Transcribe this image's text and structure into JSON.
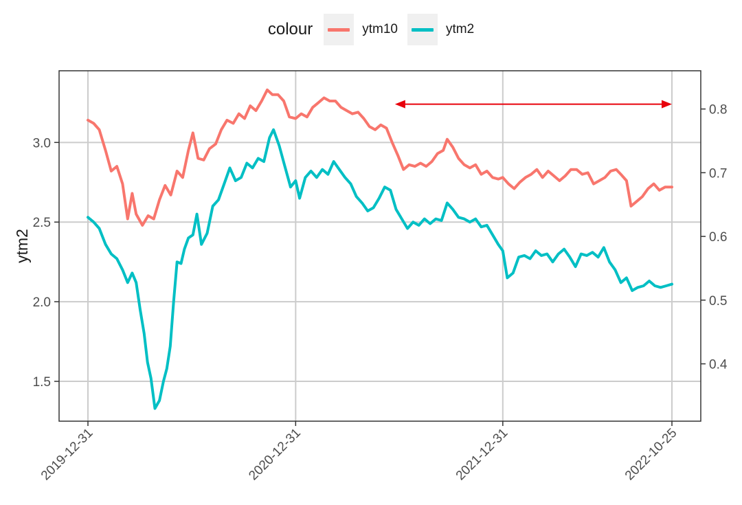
{
  "legend": {
    "title": "colour",
    "entries": [
      {
        "label": "ytm10",
        "color": "#F8766D"
      },
      {
        "label": "ytm2",
        "color": "#00BFC4"
      }
    ]
  },
  "chart_data": {
    "type": "line",
    "title": "",
    "xlabel": "",
    "ylabel": "ytm2",
    "grid": true,
    "legend_position": "top",
    "x_ticks": [
      "2019-12-31",
      "2020-12-31",
      "2021-12-31",
      "2022-10-25"
    ],
    "xlim": [
      "2019-12-31",
      "2022-10-25"
    ],
    "ylim": [
      1.25,
      3.45
    ],
    "y_ticks": [
      1.5,
      2.0,
      2.5,
      3.0
    ],
    "y2_ticks": [
      0.4,
      0.5,
      0.6,
      0.7,
      0.8
    ],
    "y2lim": [
      0.31,
      0.86
    ],
    "annotation": {
      "type": "double-arrow",
      "color": "#E8000B",
      "x_from": "2021-06-24",
      "x_to": "2022-10-25",
      "y": 3.24
    },
    "series": [
      {
        "name": "ytm10",
        "color": "#F8766D",
        "points": [
          [
            "2019-12-31",
            3.14
          ],
          [
            "2020-01-10",
            3.12
          ],
          [
            "2020-01-20",
            3.08
          ],
          [
            "2020-01-31",
            2.95
          ],
          [
            "2020-02-10",
            2.82
          ],
          [
            "2020-02-20",
            2.85
          ],
          [
            "2020-03-01",
            2.74
          ],
          [
            "2020-03-10",
            2.52
          ],
          [
            "2020-03-18",
            2.68
          ],
          [
            "2020-03-25",
            2.55
          ],
          [
            "2020-04-05",
            2.48
          ],
          [
            "2020-04-15",
            2.54
          ],
          [
            "2020-04-25",
            2.52
          ],
          [
            "2020-05-05",
            2.64
          ],
          [
            "2020-05-15",
            2.73
          ],
          [
            "2020-05-25",
            2.67
          ],
          [
            "2020-06-05",
            2.82
          ],
          [
            "2020-06-15",
            2.78
          ],
          [
            "2020-06-25",
            2.95
          ],
          [
            "2020-07-03",
            3.06
          ],
          [
            "2020-07-12",
            2.9
          ],
          [
            "2020-07-22",
            2.89
          ],
          [
            "2020-08-01",
            2.96
          ],
          [
            "2020-08-12",
            2.99
          ],
          [
            "2020-08-22",
            3.08
          ],
          [
            "2020-09-01",
            3.14
          ],
          [
            "2020-09-12",
            3.12
          ],
          [
            "2020-09-22",
            3.18
          ],
          [
            "2020-10-02",
            3.15
          ],
          [
            "2020-10-12",
            3.23
          ],
          [
            "2020-10-22",
            3.2
          ],
          [
            "2020-11-01",
            3.26
          ],
          [
            "2020-11-11",
            3.33
          ],
          [
            "2020-11-20",
            3.3
          ],
          [
            "2020-11-30",
            3.3
          ],
          [
            "2020-12-10",
            3.26
          ],
          [
            "2020-12-20",
            3.16
          ],
          [
            "2020-12-31",
            3.15
          ],
          [
            "2021-01-10",
            3.18
          ],
          [
            "2021-01-20",
            3.16
          ],
          [
            "2021-01-30",
            3.22
          ],
          [
            "2021-02-09",
            3.25
          ],
          [
            "2021-02-19",
            3.28
          ],
          [
            "2021-03-01",
            3.26
          ],
          [
            "2021-03-11",
            3.26
          ],
          [
            "2021-03-21",
            3.22
          ],
          [
            "2021-03-31",
            3.2
          ],
          [
            "2021-04-10",
            3.18
          ],
          [
            "2021-04-20",
            3.19
          ],
          [
            "2021-04-30",
            3.15
          ],
          [
            "2021-05-10",
            3.1
          ],
          [
            "2021-05-20",
            3.08
          ],
          [
            "2021-05-30",
            3.11
          ],
          [
            "2021-06-09",
            3.09
          ],
          [
            "2021-06-19",
            3.0
          ],
          [
            "2021-06-29",
            2.92
          ],
          [
            "2021-07-09",
            2.83
          ],
          [
            "2021-07-19",
            2.86
          ],
          [
            "2021-07-29",
            2.85
          ],
          [
            "2021-08-08",
            2.87
          ],
          [
            "2021-08-18",
            2.85
          ],
          [
            "2021-08-28",
            2.88
          ],
          [
            "2021-09-07",
            2.93
          ],
          [
            "2021-09-17",
            2.95
          ],
          [
            "2021-09-24",
            3.02
          ],
          [
            "2021-10-04",
            2.97
          ],
          [
            "2021-10-14",
            2.9
          ],
          [
            "2021-10-24",
            2.86
          ],
          [
            "2021-11-03",
            2.84
          ],
          [
            "2021-11-13",
            2.86
          ],
          [
            "2021-11-23",
            2.8
          ],
          [
            "2021-12-03",
            2.82
          ],
          [
            "2021-12-13",
            2.78
          ],
          [
            "2021-12-23",
            2.77
          ],
          [
            "2021-12-31",
            2.78
          ],
          [
            "2022-01-10",
            2.74
          ],
          [
            "2022-01-20",
            2.71
          ],
          [
            "2022-01-30",
            2.75
          ],
          [
            "2022-02-09",
            2.78
          ],
          [
            "2022-02-19",
            2.8
          ],
          [
            "2022-03-01",
            2.83
          ],
          [
            "2022-03-11",
            2.78
          ],
          [
            "2022-03-21",
            2.82
          ],
          [
            "2022-03-31",
            2.79
          ],
          [
            "2022-04-10",
            2.76
          ],
          [
            "2022-04-20",
            2.79
          ],
          [
            "2022-04-30",
            2.83
          ],
          [
            "2022-05-10",
            2.83
          ],
          [
            "2022-05-20",
            2.8
          ],
          [
            "2022-05-30",
            2.81
          ],
          [
            "2022-06-09",
            2.74
          ],
          [
            "2022-06-19",
            2.76
          ],
          [
            "2022-06-29",
            2.78
          ],
          [
            "2022-07-09",
            2.82
          ],
          [
            "2022-07-19",
            2.83
          ],
          [
            "2022-07-27",
            2.8
          ],
          [
            "2022-08-06",
            2.76
          ],
          [
            "2022-08-14",
            2.6
          ],
          [
            "2022-08-24",
            2.63
          ],
          [
            "2022-09-03",
            2.66
          ],
          [
            "2022-09-13",
            2.71
          ],
          [
            "2022-09-23",
            2.74
          ],
          [
            "2022-10-03",
            2.7
          ],
          [
            "2022-10-13",
            2.72
          ],
          [
            "2022-10-25",
            2.72
          ]
        ]
      },
      {
        "name": "ytm2",
        "color": "#00BFC4",
        "points": [
          [
            "2019-12-31",
            2.53
          ],
          [
            "2020-01-10",
            2.5
          ],
          [
            "2020-01-20",
            2.46
          ],
          [
            "2020-01-31",
            2.36
          ],
          [
            "2020-02-10",
            2.3
          ],
          [
            "2020-02-20",
            2.27
          ],
          [
            "2020-03-01",
            2.2
          ],
          [
            "2020-03-10",
            2.12
          ],
          [
            "2020-03-18",
            2.18
          ],
          [
            "2020-03-25",
            2.12
          ],
          [
            "2020-04-01",
            1.95
          ],
          [
            "2020-04-08",
            1.8
          ],
          [
            "2020-04-14",
            1.62
          ],
          [
            "2020-04-20",
            1.52
          ],
          [
            "2020-04-27",
            1.33
          ],
          [
            "2020-05-05",
            1.38
          ],
          [
            "2020-05-12",
            1.5
          ],
          [
            "2020-05-18",
            1.58
          ],
          [
            "2020-05-24",
            1.72
          ],
          [
            "2020-05-30",
            2.0
          ],
          [
            "2020-06-05",
            2.25
          ],
          [
            "2020-06-12",
            2.24
          ],
          [
            "2020-06-18",
            2.33
          ],
          [
            "2020-06-25",
            2.4
          ],
          [
            "2020-07-03",
            2.42
          ],
          [
            "2020-07-10",
            2.55
          ],
          [
            "2020-07-18",
            2.36
          ],
          [
            "2020-07-28",
            2.43
          ],
          [
            "2020-08-07",
            2.6
          ],
          [
            "2020-08-17",
            2.64
          ],
          [
            "2020-08-27",
            2.74
          ],
          [
            "2020-09-06",
            2.84
          ],
          [
            "2020-09-16",
            2.76
          ],
          [
            "2020-09-26",
            2.78
          ],
          [
            "2020-10-06",
            2.87
          ],
          [
            "2020-10-16",
            2.84
          ],
          [
            "2020-10-26",
            2.9
          ],
          [
            "2020-11-05",
            2.88
          ],
          [
            "2020-11-15",
            3.03
          ],
          [
            "2020-11-22",
            3.08
          ],
          [
            "2020-12-02",
            2.98
          ],
          [
            "2020-12-12",
            2.85
          ],
          [
            "2020-12-22",
            2.72
          ],
          [
            "2020-12-31",
            2.76
          ],
          [
            "2021-01-07",
            2.65
          ],
          [
            "2021-01-17",
            2.78
          ],
          [
            "2021-01-27",
            2.82
          ],
          [
            "2021-02-06",
            2.78
          ],
          [
            "2021-02-16",
            2.83
          ],
          [
            "2021-02-26",
            2.8
          ],
          [
            "2021-03-08",
            2.88
          ],
          [
            "2021-03-18",
            2.83
          ],
          [
            "2021-03-28",
            2.78
          ],
          [
            "2021-04-07",
            2.74
          ],
          [
            "2021-04-17",
            2.66
          ],
          [
            "2021-04-27",
            2.62
          ],
          [
            "2021-05-07",
            2.57
          ],
          [
            "2021-05-17",
            2.59
          ],
          [
            "2021-05-27",
            2.65
          ],
          [
            "2021-06-06",
            2.72
          ],
          [
            "2021-06-16",
            2.7
          ],
          [
            "2021-06-26",
            2.58
          ],
          [
            "2021-07-06",
            2.52
          ],
          [
            "2021-07-16",
            2.46
          ],
          [
            "2021-07-26",
            2.5
          ],
          [
            "2021-08-05",
            2.48
          ],
          [
            "2021-08-15",
            2.52
          ],
          [
            "2021-08-25",
            2.49
          ],
          [
            "2021-09-04",
            2.52
          ],
          [
            "2021-09-14",
            2.51
          ],
          [
            "2021-09-24",
            2.62
          ],
          [
            "2021-10-04",
            2.58
          ],
          [
            "2021-10-14",
            2.53
          ],
          [
            "2021-10-24",
            2.52
          ],
          [
            "2021-11-03",
            2.5
          ],
          [
            "2021-11-13",
            2.52
          ],
          [
            "2021-11-23",
            2.47
          ],
          [
            "2021-12-03",
            2.48
          ],
          [
            "2021-12-13",
            2.42
          ],
          [
            "2021-12-23",
            2.36
          ],
          [
            "2021-12-31",
            2.32
          ],
          [
            "2022-01-08",
            2.15
          ],
          [
            "2022-01-18",
            2.18
          ],
          [
            "2022-01-28",
            2.28
          ],
          [
            "2022-02-07",
            2.29
          ],
          [
            "2022-02-17",
            2.27
          ],
          [
            "2022-02-27",
            2.32
          ],
          [
            "2022-03-09",
            2.29
          ],
          [
            "2022-03-19",
            2.3
          ],
          [
            "2022-03-29",
            2.25
          ],
          [
            "2022-04-08",
            2.3
          ],
          [
            "2022-04-18",
            2.33
          ],
          [
            "2022-04-28",
            2.28
          ],
          [
            "2022-05-08",
            2.22
          ],
          [
            "2022-05-18",
            2.3
          ],
          [
            "2022-05-28",
            2.29
          ],
          [
            "2022-06-07",
            2.31
          ],
          [
            "2022-06-17",
            2.28
          ],
          [
            "2022-06-27",
            2.34
          ],
          [
            "2022-07-07",
            2.25
          ],
          [
            "2022-07-17",
            2.2
          ],
          [
            "2022-07-27",
            2.12
          ],
          [
            "2022-08-06",
            2.15
          ],
          [
            "2022-08-16",
            2.07
          ],
          [
            "2022-08-26",
            2.09
          ],
          [
            "2022-09-05",
            2.1
          ],
          [
            "2022-09-15",
            2.13
          ],
          [
            "2022-09-25",
            2.1
          ],
          [
            "2022-10-05",
            2.09
          ],
          [
            "2022-10-15",
            2.1
          ],
          [
            "2022-10-25",
            2.11
          ]
        ]
      }
    ]
  }
}
